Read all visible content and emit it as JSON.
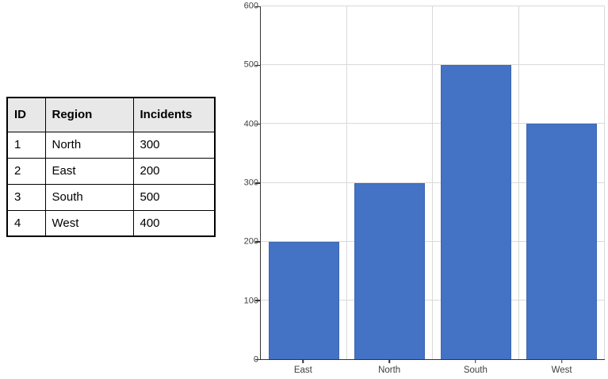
{
  "table": {
    "headers": [
      "ID",
      "Region",
      "Incidents"
    ],
    "rows": [
      [
        "1",
        "North",
        "300"
      ],
      [
        "2",
        "East",
        "200"
      ],
      [
        "3",
        "South",
        "500"
      ],
      [
        "4",
        "West",
        "400"
      ]
    ]
  },
  "chart_data": {
    "type": "bar",
    "categories": [
      "East",
      "North",
      "South",
      "West"
    ],
    "values": [
      200,
      300,
      500,
      400
    ],
    "title": "",
    "xlabel": "",
    "ylabel": "",
    "ylim": [
      0,
      600
    ],
    "yticks": [
      0,
      100,
      200,
      300,
      400,
      500,
      600
    ],
    "grid": true,
    "legend": "none",
    "bar_color": "#4472c4",
    "bar_border_color": "#3e68b2",
    "gridline_color": "#d9d9d9",
    "axis_color": "#333333",
    "tick_label_color": "#404040"
  }
}
